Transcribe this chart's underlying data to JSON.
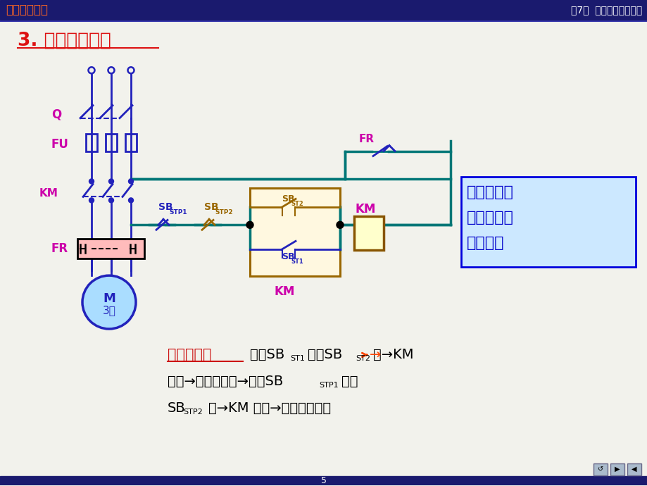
{
  "bg_color": "#f2f2ec",
  "header_bg": "#1a1a6e",
  "header_title_left": "电工电子技术",
  "header_title_right": "第7章  继电－接触器控制",
  "slide_title": "3. 多地控制电路",
  "box_text_lines": [
    "起动按钮并",
    "联，停止按",
    "钮串联。"
  ],
  "box_bg": "#cce8ff",
  "box_border": "#0000dd",
  "colors": {
    "blue": "#2222bb",
    "magenta": "#cc00aa",
    "dark_yellow": "#996600",
    "teal": "#007777",
    "black": "#000000",
    "white": "#ffffff",
    "light_yellow": "#ffffcc",
    "pink": "#ffbbbb",
    "light_blue": "#aaddff",
    "dark_brown": "#885500"
  }
}
